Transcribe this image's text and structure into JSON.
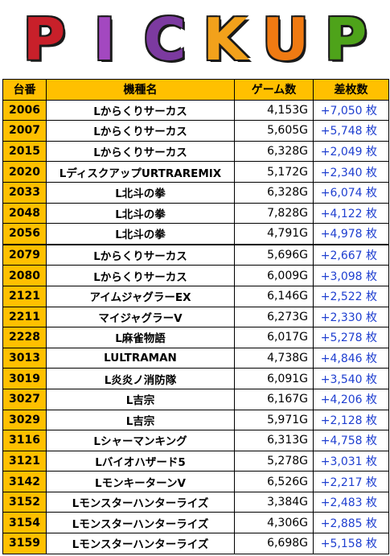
{
  "banner": {
    "letters": [
      {
        "char": "P",
        "color": "#c8202a"
      },
      {
        "char": "I",
        "color": "#a348c0"
      },
      {
        "char": "C",
        "color": "#7c3aa0"
      },
      {
        "char": "K",
        "color": "#f2a11b"
      },
      {
        "char": "U",
        "color": "#f07a12"
      },
      {
        "char": "P",
        "color": "#4ea31a"
      }
    ]
  },
  "table": {
    "headers": [
      "台番",
      "機種名",
      "ゲーム数",
      "差枚数"
    ],
    "rows": [
      {
        "num": "2006",
        "model": "Lからくりサーカス",
        "games": "4,153G",
        "diff": "+7,050 枚"
      },
      {
        "num": "2007",
        "model": "Lからくりサーカス",
        "games": "5,605G",
        "diff": "+5,748 枚"
      },
      {
        "num": "2015",
        "model": "Lからくりサーカス",
        "games": "6,328G",
        "diff": "+2,049 枚"
      },
      {
        "num": "2020",
        "model": "LディスクアップURTRAREMIX",
        "games": "5,172G",
        "diff": "+2,340 枚"
      },
      {
        "num": "2033",
        "model": "L北斗の拳",
        "games": "6,328G",
        "diff": "+6,074 枚"
      },
      {
        "num": "2048",
        "model": "L北斗の拳",
        "games": "7,828G",
        "diff": "+4,122 枚"
      },
      {
        "num": "2056",
        "model": "L北斗の拳",
        "games": "4,791G",
        "diff": "+4,978 枚"
      },
      {
        "num": "2079",
        "model": "Lからくりサーカス",
        "games": "5,696G",
        "diff": "+2,667 枚"
      },
      {
        "num": "2080",
        "model": "Lからくりサーカス",
        "games": "6,009G",
        "diff": "+3,098 枚"
      },
      {
        "num": "2121",
        "model": "アイムジャグラーEX",
        "games": "6,146G",
        "diff": "+2,522 枚"
      },
      {
        "num": "2211",
        "model": "マイジャグラーV",
        "games": "6,273G",
        "diff": "+2,330 枚"
      },
      {
        "num": "2228",
        "model": "L麻雀物語",
        "games": "6,017G",
        "diff": "+5,278 枚"
      },
      {
        "num": "3013",
        "model": "LULTRAMAN",
        "games": "4,738G",
        "diff": "+4,846 枚"
      },
      {
        "num": "3019",
        "model": "L炎炎ノ消防隊",
        "games": "6,091G",
        "diff": "+3,540 枚"
      },
      {
        "num": "3027",
        "model": "L吉宗",
        "games": "6,167G",
        "diff": "+4,206 枚"
      },
      {
        "num": "3029",
        "model": "L吉宗",
        "games": "5,971G",
        "diff": "+2,128 枚"
      },
      {
        "num": "3116",
        "model": "Lシャーマンキング",
        "games": "6,313G",
        "diff": "+4,758 枚"
      },
      {
        "num": "3121",
        "model": "Lバイオハザード5",
        "games": "5,278G",
        "diff": "+3,031 枚"
      },
      {
        "num": "3142",
        "model": "LモンキーターンV",
        "games": "6,526G",
        "diff": "+2,217 枚"
      },
      {
        "num": "3152",
        "model": "Lモンスターハンターライズ",
        "games": "3,384G",
        "diff": "+2,483 枚"
      },
      {
        "num": "3154",
        "model": "Lモンスターハンターライズ",
        "games": "4,306G",
        "diff": "+2,885 枚"
      },
      {
        "num": "3159",
        "model": "Lモンスターハンターライズ",
        "games": "6,698G",
        "diff": "+5,158 枚"
      }
    ]
  }
}
